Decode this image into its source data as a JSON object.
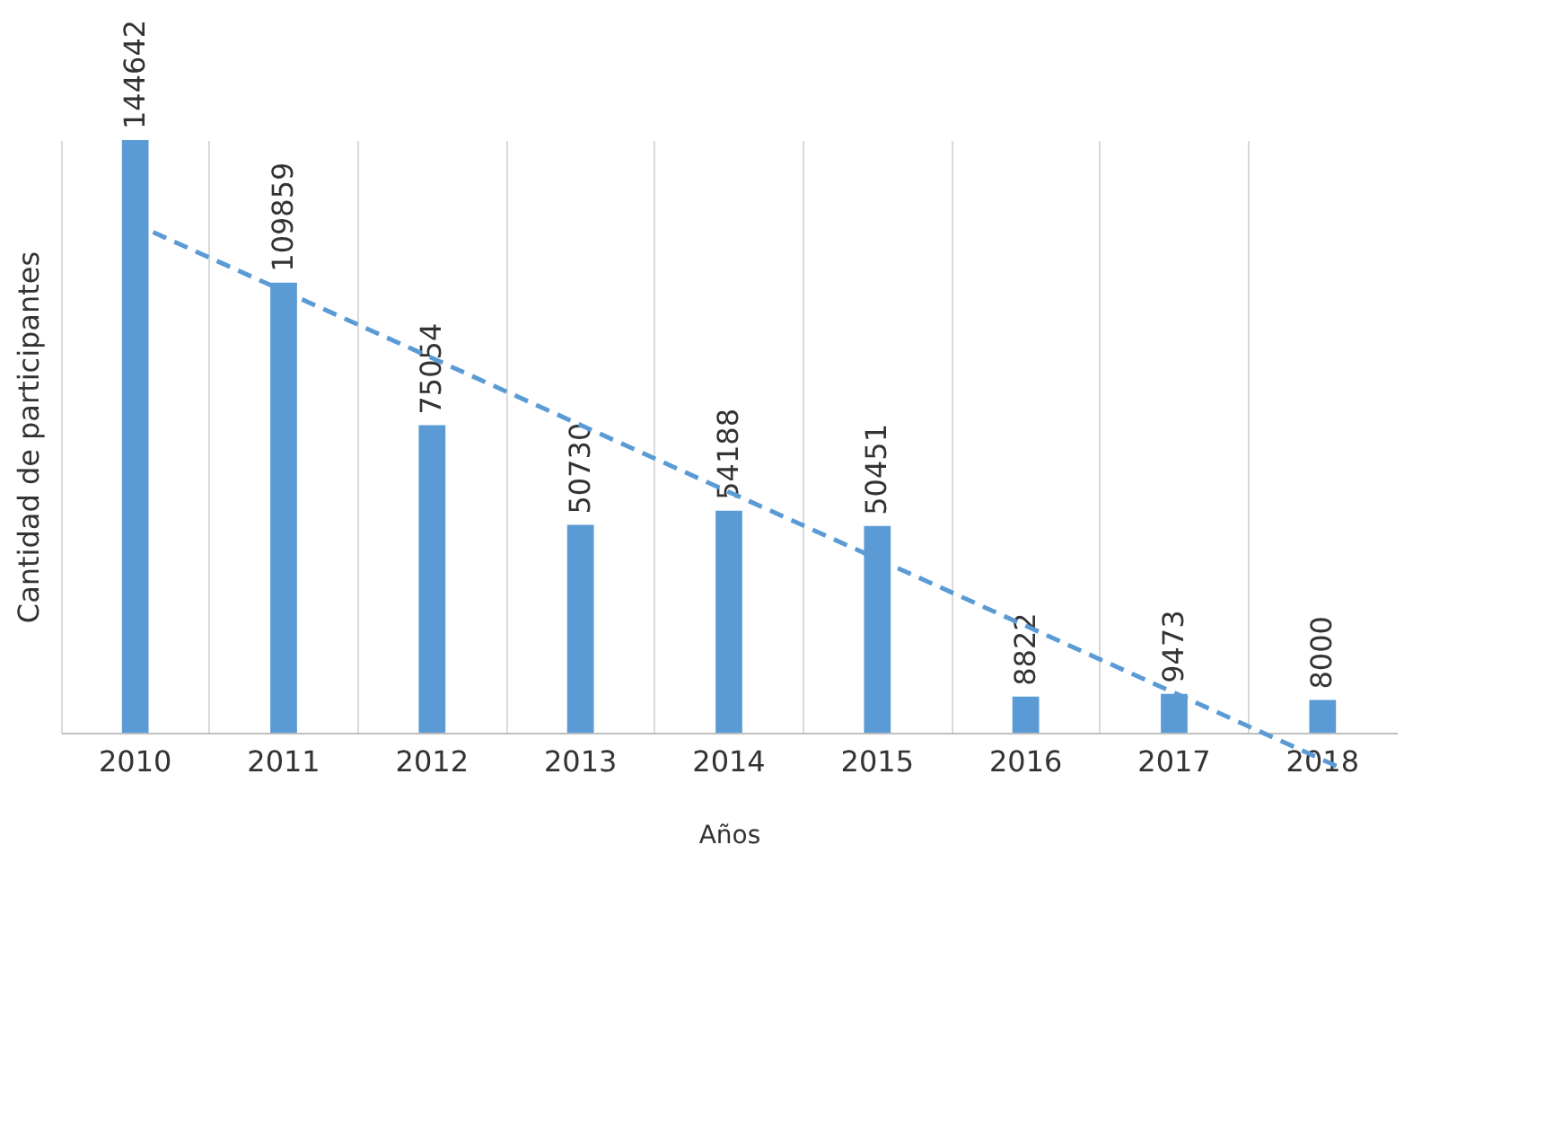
{
  "chart_data": {
    "type": "bar",
    "xlabel": "Años",
    "ylabel": "Cantidad de participantes",
    "categories": [
      "2010",
      "2011",
      "2012",
      "2013",
      "2014",
      "2015",
      "2016",
      "2017",
      "2018"
    ],
    "series": [
      {
        "color": "#5b9bd5",
        "values": [
          144642,
          109859,
          75054,
          50730,
          54188,
          50451,
          8822,
          9473,
          8000
        ],
        "value_labels": [
          "144642",
          "109859",
          "75054",
          "50730",
          "54188",
          "50451",
          "8822",
          "9473",
          "8000"
        ]
      },
      {
        "type": "line",
        "color": "#5b9bd5",
        "line_style": "dashed",
        "marker": "none",
        "values": [
          122166,
          105825,
          89484,
          73143,
          56802,
          40461,
          24120,
          7779,
          -8562
        ]
      }
    ],
    "grid": "x"
  }
}
